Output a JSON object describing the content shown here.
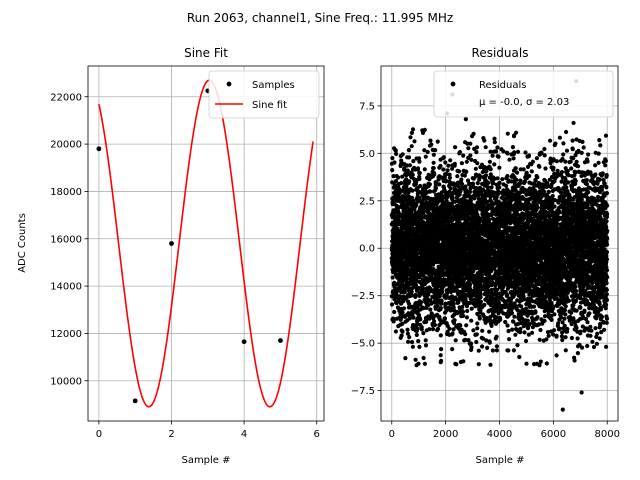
{
  "figure": {
    "suptitle": "Run 2063, channel1, Sine Freq.: 11.995 MHz"
  },
  "chart_data": [
    {
      "type": "scatter+line",
      "title": "Sine Fit",
      "xlabel": "Sample #",
      "ylabel": "ADC Counts",
      "xlim": [
        -0.3,
        6.2
      ],
      "ylim": [
        8300,
        23300
      ],
      "xticks": [
        0,
        2,
        4,
        6
      ],
      "yticks": [
        10000,
        12000,
        14000,
        16000,
        18000,
        20000,
        22000
      ],
      "grid": true,
      "legend_position": "top-right",
      "series": [
        {
          "name": "Samples",
          "kind": "scatter",
          "color": "#000000",
          "x": [
            0,
            1,
            2,
            3,
            4,
            5
          ],
          "y": [
            19800,
            9150,
            15800,
            22250,
            11650,
            11700
          ]
        },
        {
          "name": "Sine fit",
          "kind": "line",
          "color": "#ff0000",
          "model": {
            "offset": 15800,
            "amplitude": 6900,
            "angular_freq_rad_per_sample": 1.885,
            "phase_rad": 2.12,
            "x_range": [
              0,
              5.9
            ]
          }
        }
      ]
    },
    {
      "type": "scatter",
      "title": "Residuals",
      "xlabel": "Sample #",
      "ylabel": "",
      "xlim": [
        -400,
        8400
      ],
      "ylim": [
        -9.1,
        9.6
      ],
      "xticks": [
        0,
        2000,
        4000,
        6000,
        8000
      ],
      "yticks": [
        -7.5,
        -5.0,
        -2.5,
        0.0,
        2.5,
        5.0,
        7.5
      ],
      "grid": true,
      "legend_position": "top-right",
      "series": [
        {
          "name": "Residuals",
          "stats_label": "μ = -0.0, σ = 2.03",
          "color": "#000000",
          "n_points": 8000,
          "mean": 0.0,
          "std": 2.03,
          "outliers": [
            {
              "x": 2250,
              "y": 8.1
            },
            {
              "x": 6850,
              "y": 8.8
            },
            {
              "x": 6350,
              "y": -8.5
            },
            {
              "x": 7050,
              "y": -7.6
            },
            {
              "x": 2050,
              "y": 7.1
            },
            {
              "x": 2750,
              "y": 6.8
            },
            {
              "x": 6750,
              "y": 6.6
            }
          ]
        }
      ]
    }
  ]
}
